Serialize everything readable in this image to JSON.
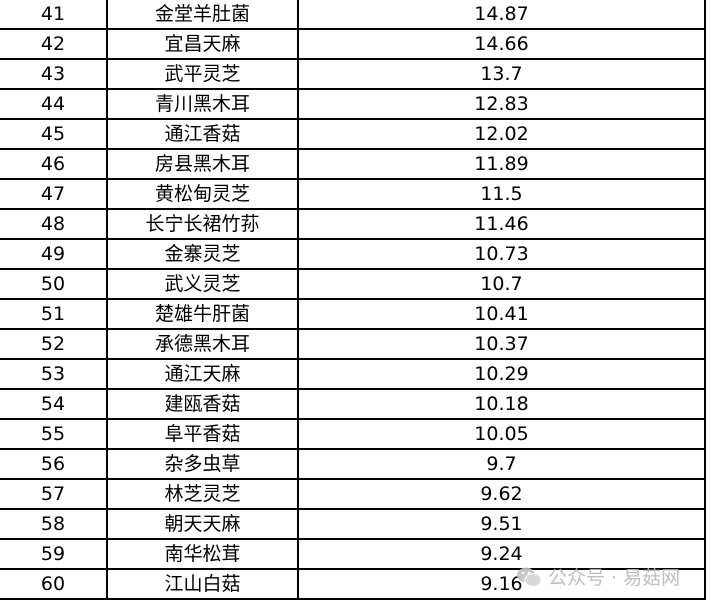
{
  "rows": [
    {
      "rank": "41",
      "name": "金堂羊肚菌",
      "value": "14.87"
    },
    {
      "rank": "42",
      "name": "宜昌天麻",
      "value": "14.66"
    },
    {
      "rank": "43",
      "name": "武平灵芝",
      "value": "13.7"
    },
    {
      "rank": "44",
      "name": "青川黑木耳",
      "value": "12.83"
    },
    {
      "rank": "45",
      "name": "通江香菇",
      "value": "12.02"
    },
    {
      "rank": "46",
      "name": "房县黑木耳",
      "value": "11.89"
    },
    {
      "rank": "47",
      "name": "黄松甸灵芝",
      "value": "11.5"
    },
    {
      "rank": "48",
      "name": "长宁长裙竹荪",
      "value": "11.46"
    },
    {
      "rank": "49",
      "name": "金寨灵芝",
      "value": "10.73"
    },
    {
      "rank": "50",
      "name": "武义灵芝",
      "value": "10.7"
    },
    {
      "rank": "51",
      "name": "楚雄牛肝菌",
      "value": "10.41"
    },
    {
      "rank": "52",
      "name": "承德黑木耳",
      "value": "10.37"
    },
    {
      "rank": "53",
      "name": "通江天麻",
      "value": "10.29"
    },
    {
      "rank": "54",
      "name": "建瓯香菇",
      "value": "10.18"
    },
    {
      "rank": "55",
      "name": "阜平香菇",
      "value": "10.05"
    },
    {
      "rank": "56",
      "name": "杂多虫草",
      "value": "9.7"
    },
    {
      "rank": "57",
      "name": "林芝灵芝",
      "value": "9.62"
    },
    {
      "rank": "58",
      "name": "朝天天麻",
      "value": "9.51"
    },
    {
      "rank": "59",
      "name": "南华松茸",
      "value": "9.24"
    },
    {
      "rank": "60",
      "name": "江山白菇",
      "value": "9.16"
    }
  ],
  "watermark": {
    "text": "公众号 · 易菇网",
    "icon": "wechat-icon"
  }
}
